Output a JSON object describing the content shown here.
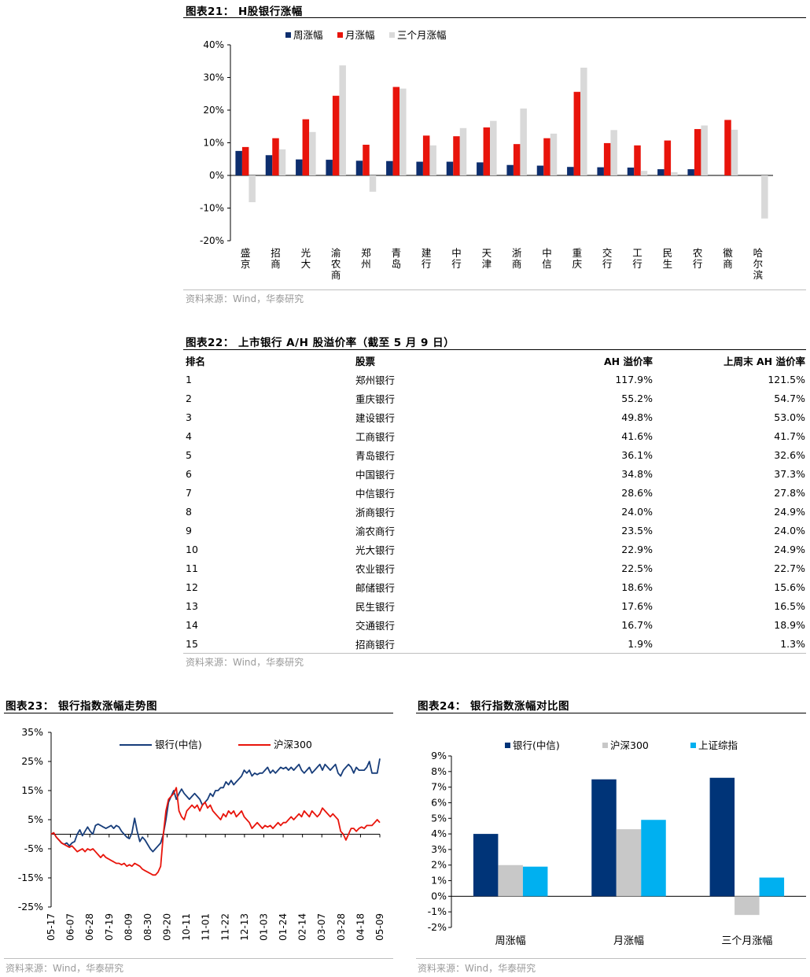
{
  "fig21": {
    "title": "图表21：  H股银行涨幅",
    "source": "资料来源：Wind，华泰研究",
    "chart_data": {
      "type": "bar",
      "title": "H股银行涨幅",
      "categories": [
        "盛京",
        "招商",
        "光大",
        "渝农商",
        "郑州",
        "青岛",
        "建行",
        "中行",
        "天津",
        "浙商",
        "中信",
        "重庆",
        "交行",
        "工行",
        "民生",
        "农行",
        "徽商",
        "哈尔滨"
      ],
      "series": [
        {
          "name": "周涨幅",
          "color": "#0d2e6e",
          "values": [
            7.5,
            6.2,
            4.9,
            4.8,
            4.5,
            4.4,
            4.2,
            4.2,
            4.0,
            3.2,
            3.0,
            2.6,
            2.5,
            2.4,
            1.9,
            1.9,
            0,
            0
          ]
        },
        {
          "name": "月涨幅",
          "color": "#e8140b",
          "values": [
            8.7,
            11.4,
            17.2,
            24.4,
            9.4,
            27.1,
            12.2,
            12.0,
            14.7,
            9.6,
            11.4,
            25.6,
            9.9,
            9.2,
            10.7,
            14.2,
            17.0,
            0
          ]
        },
        {
          "name": "三个月涨幅",
          "color": "#d9d9d9",
          "values": [
            -8.2,
            8.0,
            13.3,
            33.7,
            -5.0,
            26.6,
            9.2,
            14.5,
            16.7,
            20.5,
            12.8,
            33.0,
            13.9,
            1.4,
            1.0,
            15.3,
            14.0,
            -13.2
          ]
        }
      ],
      "ylim": [
        -20,
        40
      ],
      "yticks": [
        "-20%",
        "-10%",
        "0%",
        "10%",
        "20%",
        "30%",
        "40%"
      ],
      "legend": "top"
    }
  },
  "fig22": {
    "title": "图表22：  上市银行 A/H 股溢价率（截至 5 月 9 日）",
    "source": "资料来源：Wind，华泰研究",
    "headers": [
      "排名",
      "股票",
      "AH 溢价率",
      "上周末 AH 溢价率"
    ],
    "chart_data": {
      "type": "table",
      "rows": [
        [
          "1",
          "郑州银行",
          "117.9%",
          "121.5%"
        ],
        [
          "2",
          "重庆银行",
          "55.2%",
          "54.7%"
        ],
        [
          "3",
          "建设银行",
          "49.8%",
          "53.0%"
        ],
        [
          "4",
          "工商银行",
          "41.6%",
          "41.7%"
        ],
        [
          "5",
          "青岛银行",
          "36.1%",
          "32.6%"
        ],
        [
          "6",
          "中国银行",
          "34.8%",
          "37.3%"
        ],
        [
          "7",
          "中信银行",
          "28.6%",
          "27.8%"
        ],
        [
          "8",
          "浙商银行",
          "24.0%",
          "24.9%"
        ],
        [
          "9",
          "渝农商行",
          "23.5%",
          "24.0%"
        ],
        [
          "10",
          "光大银行",
          "22.9%",
          "24.9%"
        ],
        [
          "11",
          "农业银行",
          "22.5%",
          "22.7%"
        ],
        [
          "12",
          "邮储银行",
          "18.6%",
          "15.6%"
        ],
        [
          "13",
          "民生银行",
          "17.6%",
          "16.5%"
        ],
        [
          "14",
          "交通银行",
          "16.7%",
          "18.9%"
        ],
        [
          "15",
          "招商银行",
          "1.9%",
          "1.3%"
        ]
      ]
    }
  },
  "fig23": {
    "title": "图表23：  银行指数涨幅走势图",
    "source": "资料来源：Wind，华泰研究",
    "chart_data": {
      "type": "line",
      "title": "银行指数涨幅走势图",
      "xticks": [
        "05-17",
        "06-07",
        "06-28",
        "07-19",
        "08-09",
        "08-30",
        "09-20",
        "10-11",
        "11-01",
        "11-22",
        "12-13",
        "01-03",
        "01-24",
        "02-14",
        "03-07",
        "03-28",
        "04-18",
        "05-09"
      ],
      "ylim": [
        -25,
        35
      ],
      "yticks": [
        "-25%",
        "-15%",
        "-5%",
        "5%",
        "15%",
        "25%",
        "35%"
      ],
      "series": [
        {
          "name": "银行(中信)",
          "color": "#173d7a",
          "values": [
            0,
            0.5,
            -1,
            -2,
            -3,
            -3.5,
            -3,
            -4,
            -3,
            -2.5,
            0,
            1.5,
            -0.5,
            1,
            2.5,
            1,
            0,
            3,
            3.5,
            3,
            2.5,
            2,
            2.5,
            3,
            2,
            3,
            2.5,
            1,
            0,
            -1,
            -1.5,
            0.5,
            5.5,
            1,
            -2.5,
            -1,
            -2,
            -3.5,
            -5,
            -6,
            -5,
            -4,
            -3,
            0,
            5,
            11,
            13,
            15,
            12,
            14,
            15.5,
            14,
            13,
            12,
            13,
            14,
            13,
            12,
            10,
            11,
            12,
            14,
            13,
            15,
            15,
            16,
            16,
            18,
            17,
            18.5,
            17,
            18,
            19,
            20,
            22,
            21,
            22,
            20,
            21,
            20.5,
            21,
            21,
            22,
            23,
            21,
            22,
            21,
            22,
            23,
            22.5,
            23,
            22,
            23,
            22,
            23,
            24,
            22,
            21,
            22,
            23,
            21,
            22,
            23,
            24,
            22,
            24,
            23,
            22,
            23,
            24,
            21,
            20,
            22,
            23,
            24,
            23,
            21,
            23,
            22,
            22,
            22,
            23,
            25,
            21,
            21,
            21,
            26
          ]
        },
        {
          "name": "沪深300",
          "color": "#e8140b",
          "values": [
            0,
            0.5,
            -1,
            -2,
            -3,
            -3.5,
            -4,
            -4.5,
            -4,
            -5,
            -6,
            -5.5,
            -5,
            -6,
            -5,
            -5.5,
            -5,
            -6,
            -7,
            -8,
            -7,
            -8,
            -8.5,
            -9,
            -9.5,
            -10,
            -10,
            -10.5,
            -10,
            -11,
            -10.5,
            -11,
            -10,
            -10.5,
            -11,
            -12,
            -12.5,
            -13,
            -13.5,
            -14,
            -14,
            -13,
            -11,
            0,
            8,
            12,
            13,
            14,
            16,
            8,
            6,
            5,
            8,
            9,
            10,
            9,
            10,
            8,
            10,
            11,
            9,
            10,
            8,
            7,
            6,
            5,
            7,
            6,
            8,
            7,
            8,
            6,
            7,
            8,
            6,
            5,
            4,
            2,
            3,
            4,
            3,
            2,
            3,
            2.5,
            3,
            2,
            3,
            4,
            3,
            4,
            4,
            5,
            6,
            5,
            6,
            7,
            6,
            8,
            7,
            6,
            8,
            7,
            6,
            7,
            9,
            8,
            7,
            6,
            7,
            6,
            5,
            1,
            0,
            -2,
            0,
            2,
            2,
            1,
            2,
            2.5,
            2,
            3,
            3,
            3,
            4,
            5,
            4
          ]
        }
      ],
      "legend": "top"
    }
  },
  "fig24": {
    "title": "图表24：  银行指数涨幅对比图",
    "source": "资料来源：Wind，华泰研究",
    "chart_data": {
      "type": "bar",
      "title": "银行指数涨幅对比图",
      "categories": [
        "周涨幅",
        "月涨幅",
        "三个月涨幅"
      ],
      "series": [
        {
          "name": "银行(中信)",
          "color": "#003478",
          "values": [
            4.0,
            7.5,
            7.6
          ]
        },
        {
          "name": "沪深300",
          "color": "#c8c8c8",
          "values": [
            2.0,
            4.3,
            -1.2
          ]
        },
        {
          "name": "上证综指",
          "color": "#00b0f0",
          "values": [
            1.9,
            4.9,
            1.2
          ]
        }
      ],
      "ylim": [
        -2,
        9
      ],
      "yticks": [
        "-2%",
        "-1%",
        "0%",
        "1%",
        "2%",
        "3%",
        "4%",
        "5%",
        "6%",
        "7%",
        "8%",
        "9%"
      ],
      "legend": "top"
    }
  }
}
